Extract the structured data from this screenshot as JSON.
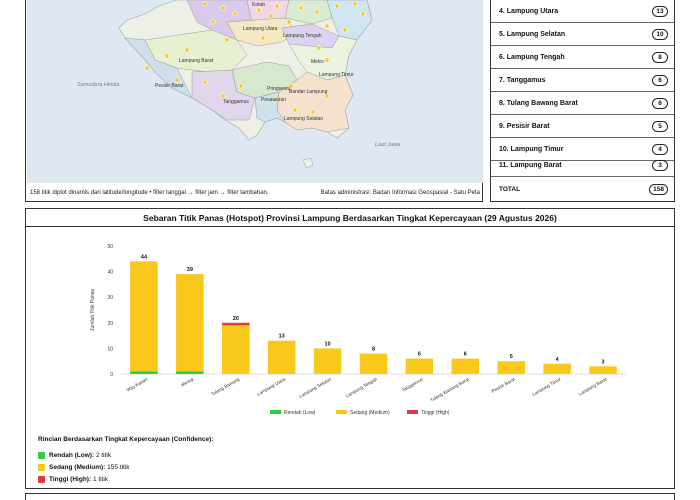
{
  "map": {
    "labels": {
      "kotabumi": "Kotab",
      "lampung_utara": "Lampung Utara",
      "lampung_tengah": "Lampung Tengah",
      "lampung_barat": "Lampung Barat",
      "metro": "Metro",
      "lampung_timur": "Lampung Timur",
      "samudera_hindia": "Samudera Hindia",
      "pesisir_barat": "Pesisir Barat",
      "pringsewu": "Pringsewu",
      "tanggamus": "Tanggamus",
      "bandar_lampung": "Bandar Lampung",
      "pesawaran": "Pesawaran",
      "lampung_selatan": "Lampung Selatan",
      "laut_jawa": "Laut Jawa"
    },
    "footer_left": "158 titik diplot dinamis dari latitude/longitude • filter tanggal → filter jam → filter tambahan.",
    "footer_right": "Batas administrasi: Badan Informasi Geospasial - Satu Peta"
  },
  "ranking": {
    "items": [
      {
        "label": "4. Lampung Utara",
        "count": "13"
      },
      {
        "label": "5. Lampung Selatan",
        "count": "10"
      },
      {
        "label": "6. Lampung Tengah",
        "count": "8"
      },
      {
        "label": "7. Tanggamus",
        "count": "6"
      },
      {
        "label": "8. Tulang Bawang Barat",
        "count": "6"
      },
      {
        "label": "9. Pesisir Barat",
        "count": "5"
      },
      {
        "label": "10. Lampung Timur",
        "count": "4"
      },
      {
        "label": "11. Lampung Barat",
        "count": "3"
      }
    ],
    "total_label": "TOTAL",
    "total_count": "158"
  },
  "chart_data": {
    "type": "bar",
    "title": "Sebaran Titik Panas (Hotspot) Provinsi Lampung Berdasarkan Tingkat Kepercayaan (29 Agustus 2026)",
    "ylabel": "Jumlah Titik Panas",
    "xlabel": "",
    "ylim": [
      0,
      50
    ],
    "yticks": [
      0,
      10,
      20,
      30,
      40,
      50
    ],
    "categories": [
      "Way Kanan",
      "Mesuji",
      "Tulang Bawang",
      "Lampung Utara",
      "Lampung Selatan",
      "Lampung Tengah",
      "Tanggamus",
      "Tulang Bawang Barat",
      "Pesisir Barat",
      "Lampung Timur",
      "Lampung Barat"
    ],
    "totals": [
      44,
      39,
      20,
      13,
      10,
      8,
      6,
      6,
      5,
      4,
      3
    ],
    "series": [
      {
        "name": "Rendah (Low)",
        "color": "#2ecc40",
        "values": [
          1,
          1,
          0,
          0,
          0,
          0,
          0,
          0,
          0,
          0,
          0
        ]
      },
      {
        "name": "Sedang (Medium)",
        "color": "#f8c81c",
        "values": [
          43,
          38,
          19,
          13,
          10,
          8,
          6,
          6,
          5,
          4,
          3
        ]
      },
      {
        "name": "Tinggi (High)",
        "color": "#e23b3b",
        "values": [
          0,
          0,
          1,
          0,
          0,
          0,
          0,
          0,
          0,
          0,
          0
        ]
      }
    ],
    "legend_position": "bottom",
    "grid": false
  },
  "rincian": {
    "title": "Rincian Berdasarkan Tingkat Kepercayaan (Confidence):",
    "items": [
      {
        "label": "Rendah (Low):",
        "value": "2 titik",
        "color": "#2ecc40"
      },
      {
        "label": "Sedang (Medium):",
        "value": "155 titik",
        "color": "#f8c81c"
      },
      {
        "label": "Tinggi (High):",
        "value": "1 titik",
        "color": "#e23b3b"
      }
    ]
  }
}
